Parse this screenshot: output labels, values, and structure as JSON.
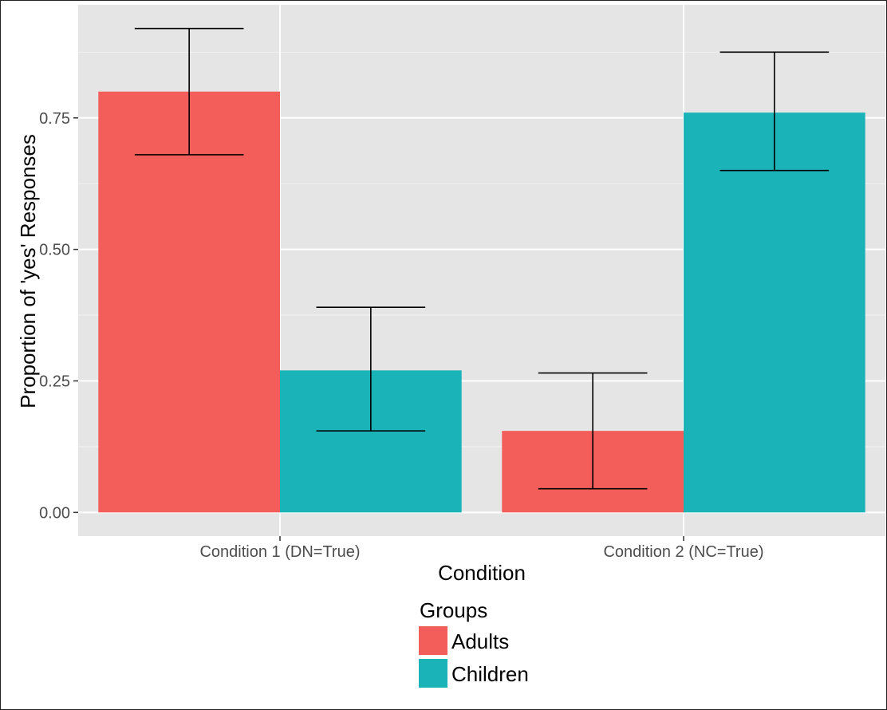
{
  "chart_data": {
    "type": "bar",
    "title": "",
    "xlabel": "Condition",
    "ylabel": "Proportion of 'yes' Responses",
    "categories": [
      "Condition 1 (DN=True)",
      "Condition 2 (NC=True)"
    ],
    "series": [
      {
        "name": "Adults",
        "color": "#f35e5a",
        "values": [
          0.8,
          0.155
        ],
        "error_low": [
          0.68,
          0.045
        ],
        "error_high": [
          0.92,
          0.265
        ]
      },
      {
        "name": "Children",
        "color": "#19b3b8",
        "values": [
          0.27,
          0.76
        ],
        "error_low": [
          0.155,
          0.65
        ],
        "error_high": [
          0.39,
          0.875
        ]
      }
    ],
    "yticks": [
      "0.00",
      "0.25",
      "0.50",
      "0.75"
    ],
    "ytick_values": [
      0,
      0.25,
      0.5,
      0.75
    ],
    "ylim": [
      -0.045,
      0.965
    ],
    "grid": true,
    "panel_background": "#e5e5e5",
    "legend": {
      "title": "Groups",
      "position": "bottom"
    }
  }
}
